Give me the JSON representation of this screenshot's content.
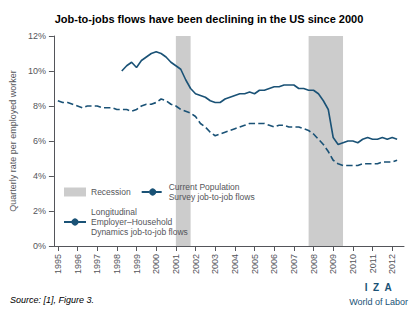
{
  "chart_data": {
    "type": "line",
    "title": "Job-to-jobs flows have been declining in the US since 2000",
    "ylabel": "Quarterly rate per employed worker",
    "annotations": [
      {
        "text": "Source: [1], Figure 3."
      },
      {
        "text": "I  Z  A",
        "color": "#1a5276"
      },
      {
        "text": "World of Labor",
        "color": "#1a5276"
      }
    ],
    "xlim": [
      1994.8,
      2012.6
    ],
    "xticks": [
      1995,
      1996,
      1997,
      1998,
      1999,
      2000,
      2001,
      2002,
      2003,
      2004,
      2005,
      2006,
      2007,
      2008,
      2009,
      2010,
      2011,
      2012
    ],
    "ylim": [
      0,
      12
    ],
    "yticks": [
      {
        "value": 0,
        "label": "0%"
      },
      {
        "value": 2,
        "label": "2%"
      },
      {
        "value": 4,
        "label": "4%"
      },
      {
        "value": 6,
        "label": "6%"
      },
      {
        "value": 8,
        "label": "8%"
      },
      {
        "value": 10,
        "label": "10%"
      },
      {
        "value": 12,
        "label": "12%"
      }
    ],
    "grid": false,
    "legend": "lower left",
    "shading": {
      "name": "Recession",
      "color": "#cccccc",
      "ranges": [
        [
          2001.0,
          2001.75
        ],
        [
          2007.75,
          2009.5
        ]
      ]
    },
    "series": [
      {
        "name": "Current Population\nSurvey job-to-job flows",
        "color": "#1a5276",
        "line_style": "dashed",
        "x": [
          1995.0,
          1995.25,
          1995.5,
          1995.75,
          1996.0,
          1996.25,
          1996.5,
          1996.75,
          1997.0,
          1997.25,
          1997.5,
          1997.75,
          1998.0,
          1998.25,
          1998.5,
          1998.75,
          1999.0,
          1999.25,
          1999.5,
          1999.75,
          2000.0,
          2000.25,
          2000.5,
          2000.75,
          2001.0,
          2001.25,
          2001.5,
          2001.75,
          2002.0,
          2002.25,
          2002.5,
          2002.75,
          2003.0,
          2003.25,
          2003.5,
          2003.75,
          2004.0,
          2004.25,
          2004.5,
          2004.75,
          2005.0,
          2005.25,
          2005.5,
          2005.75,
          2006.0,
          2006.25,
          2006.5,
          2006.75,
          2007.0,
          2007.25,
          2007.5,
          2007.75,
          2008.0,
          2008.25,
          2008.5,
          2008.75,
          2009.0,
          2009.25,
          2009.5,
          2009.75,
          2010.0,
          2010.25,
          2010.5,
          2010.75,
          2011.0,
          2011.25,
          2011.5,
          2011.75,
          2012.0,
          2012.25
        ],
        "values": [
          8.3,
          8.2,
          8.2,
          8.1,
          8.0,
          7.9,
          8.0,
          8.0,
          8.0,
          7.9,
          7.9,
          7.9,
          7.8,
          7.8,
          7.8,
          7.7,
          7.8,
          8.0,
          8.1,
          8.1,
          8.2,
          8.4,
          8.3,
          8.1,
          8.0,
          7.8,
          7.7,
          7.6,
          7.4,
          7.0,
          6.8,
          6.5,
          6.3,
          6.4,
          6.5,
          6.6,
          6.7,
          6.8,
          6.9,
          7.0,
          7.0,
          7.0,
          7.0,
          6.9,
          6.8,
          6.9,
          6.9,
          6.8,
          6.8,
          6.8,
          6.7,
          6.6,
          6.4,
          6.1,
          5.8,
          5.4,
          4.9,
          4.7,
          4.6,
          4.6,
          4.6,
          4.6,
          4.7,
          4.7,
          4.7,
          4.7,
          4.8,
          4.8,
          4.8,
          4.9
        ]
      },
      {
        "name": "Longitudinal\nEmployer–Household\nDynamics job-to-job flows",
        "color": "#1a5276",
        "line_style": "solid",
        "x": [
          1998.25,
          1998.5,
          1998.75,
          1999.0,
          1999.25,
          1999.5,
          1999.75,
          2000.0,
          2000.25,
          2000.5,
          2000.75,
          2001.0,
          2001.25,
          2001.5,
          2001.75,
          2002.0,
          2002.25,
          2002.5,
          2002.75,
          2003.0,
          2003.25,
          2003.5,
          2003.75,
          2004.0,
          2004.25,
          2004.5,
          2004.75,
          2005.0,
          2005.25,
          2005.5,
          2005.75,
          2006.0,
          2006.25,
          2006.5,
          2006.75,
          2007.0,
          2007.25,
          2007.5,
          2007.75,
          2008.0,
          2008.25,
          2008.5,
          2008.75,
          2009.0,
          2009.25,
          2009.5,
          2009.75,
          2010.0,
          2010.25,
          2010.5,
          2010.75,
          2011.0,
          2011.25,
          2011.5,
          2011.75,
          2012.0,
          2012.25
        ],
        "values": [
          10.0,
          10.3,
          10.5,
          10.2,
          10.6,
          10.8,
          11.0,
          11.1,
          11.0,
          10.8,
          10.5,
          10.3,
          10.1,
          9.5,
          9.0,
          8.7,
          8.6,
          8.5,
          8.3,
          8.2,
          8.2,
          8.4,
          8.5,
          8.6,
          8.7,
          8.7,
          8.8,
          8.7,
          8.9,
          8.9,
          9.0,
          9.1,
          9.1,
          9.2,
          9.2,
          9.2,
          9.0,
          9.0,
          8.9,
          8.9,
          8.7,
          8.3,
          7.8,
          6.2,
          5.8,
          5.9,
          6.0,
          6.0,
          5.9,
          6.1,
          6.2,
          6.1,
          6.1,
          6.2,
          6.1,
          6.2,
          6.1
        ]
      }
    ]
  }
}
